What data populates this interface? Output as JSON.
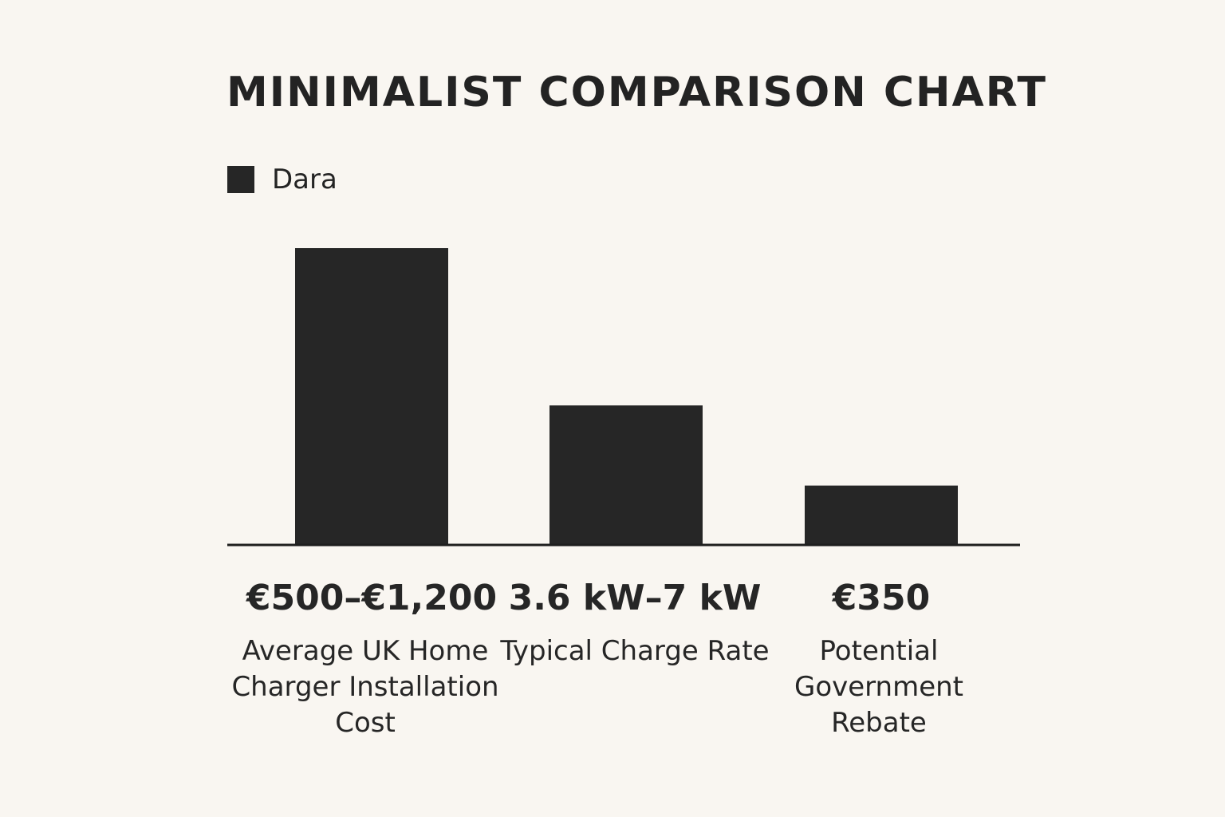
{
  "chart_data": {
    "type": "bar",
    "title": "MINIMALIST COMPARISON CHART",
    "legend": {
      "placement": "top-left",
      "entries": [
        {
          "name": "Dara",
          "color": "#262626"
        }
      ]
    },
    "categories": [
      "Average UK Home Charger Installation Cost",
      "Typical Charge Rate",
      "Potential Government Rebate"
    ],
    "value_labels": [
      "€500–€1,200",
      "3.6 kW–7 kW",
      "€350"
    ],
    "series": [
      {
        "name": "Dara",
        "values": [
          100,
          47,
          20
        ]
      }
    ],
    "ylim": [
      0,
      100
    ],
    "grid": false,
    "xlabel": "",
    "ylabel": ""
  },
  "colors": {
    "background": "#f9f6f1",
    "bar": "#262626",
    "axis": "#1e1e1e",
    "text": "#242424"
  }
}
